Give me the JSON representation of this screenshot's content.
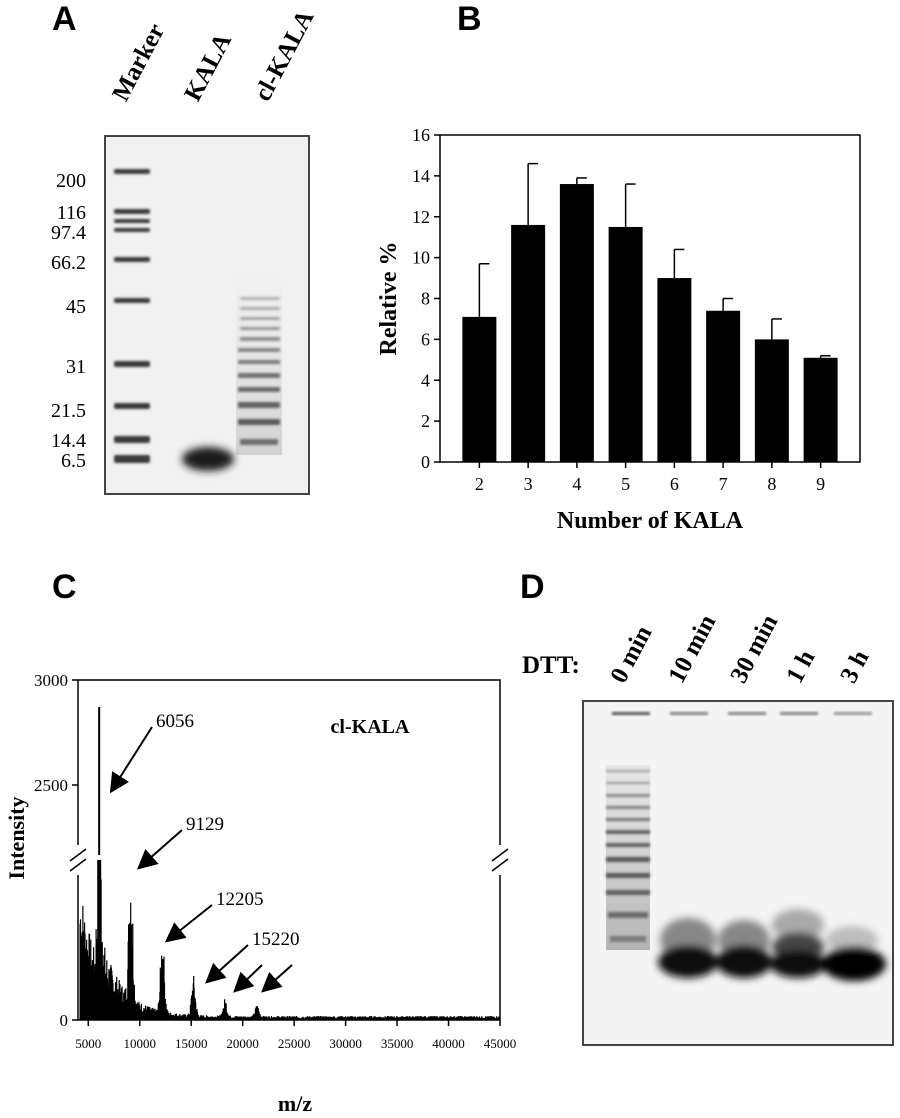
{
  "panelA": {
    "letter": "A",
    "lanes": [
      "Marker",
      "KALA",
      "cl-KALA"
    ],
    "markers": [
      "200",
      "116",
      "97.4",
      "66.2",
      "45",
      "31",
      "21.5",
      "14.4",
      "6.5"
    ]
  },
  "panelB": {
    "letter": "B",
    "chart_data": {
      "type": "bar",
      "categories": [
        "2",
        "3",
        "4",
        "5",
        "6",
        "7",
        "8",
        "9"
      ],
      "values": [
        7.1,
        11.6,
        13.6,
        11.5,
        9.0,
        7.4,
        6.0,
        5.1
      ],
      "errors": [
        2.6,
        3.0,
        0.3,
        2.1,
        1.4,
        0.6,
        1.0,
        0.1
      ],
      "xlabel": "Number of KALA",
      "ylabel": "Relative %",
      "ylim": [
        0,
        16
      ],
      "yticks": [
        "0",
        "2",
        "4",
        "6",
        "8",
        "10",
        "12",
        "14",
        "16"
      ],
      "color": "#000000"
    }
  },
  "panelC": {
    "letter": "C",
    "chart_data": {
      "type": "line",
      "title": "cl-KALA",
      "xlabel": "m/z",
      "ylabel": "Intensity",
      "xlim": [
        4000,
        45000
      ],
      "xticks": [
        "5000",
        "10000",
        "15000",
        "20000",
        "25000",
        "30000",
        "35000",
        "40000",
        "45000"
      ],
      "yticks": [
        "0",
        "2500",
        "3000"
      ],
      "annotations": [
        "6056",
        "9129",
        "12205",
        "15220"
      ],
      "peaks": [
        {
          "mz": 6056,
          "label": "6056"
        },
        {
          "mz": 9129,
          "label": "9129"
        },
        {
          "mz": 12205,
          "label": "12205"
        },
        {
          "mz": 15220,
          "label": "15220"
        }
      ]
    }
  },
  "panelD": {
    "letter": "D",
    "row_label": "DTT:",
    "lanes": [
      "0 min",
      "10 min",
      "30 min",
      "1 h",
      "3 h"
    ]
  }
}
